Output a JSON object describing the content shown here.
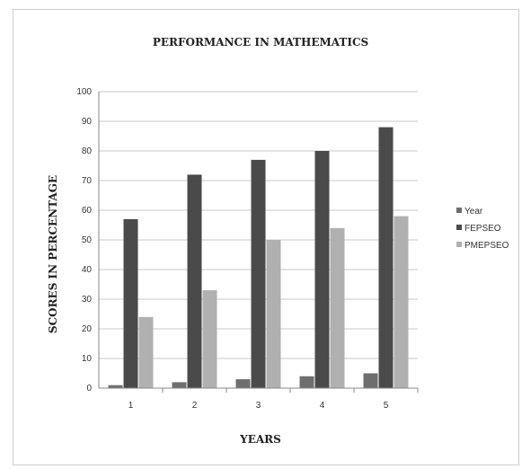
{
  "chart_data": {
    "type": "bar",
    "title": "PERFORMANCE IN MATHEMATICS",
    "xlabel": "YEARS",
    "ylabel": "SCORES IN PERCENTAGE",
    "ylim": [
      0,
      100
    ],
    "yticks": [
      0,
      10,
      20,
      30,
      40,
      50,
      60,
      70,
      80,
      90,
      100
    ],
    "categories": [
      "1",
      "2",
      "3",
      "4",
      "5"
    ],
    "grid": true,
    "legend_position": "right",
    "series": [
      {
        "name": "Year",
        "values": [
          1,
          2,
          3,
          4,
          5
        ],
        "color": "#6e6e6e"
      },
      {
        "name": "FEPSEO",
        "values": [
          57,
          72,
          77,
          80,
          88
        ],
        "color": "#4a4a4a"
      },
      {
        "name": "PMEPSEO",
        "values": [
          24,
          33,
          50,
          54,
          58
        ],
        "color": "#b0b0b0"
      }
    ]
  }
}
